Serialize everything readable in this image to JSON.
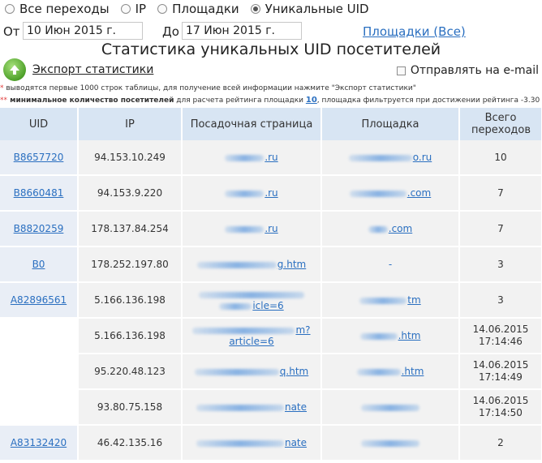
{
  "filters": {
    "options": [
      {
        "label": "Все переходы",
        "checked": false
      },
      {
        "label": "IP",
        "checked": false
      },
      {
        "label": "Площадки",
        "checked": false
      },
      {
        "label": "Уникальные UID",
        "checked": true
      }
    ],
    "from_label": "От",
    "from_value": "10 Июн 2015 г.",
    "to_label": "До",
    "to_value": "17 Июн 2015 г.",
    "sites_link": "Площадки (Все)"
  },
  "title": "Статистика уникальных UID посетителей",
  "export_label": "Экспорт статистики",
  "email_label": "Отправлять на e-mail",
  "notes": {
    "note1_star": "*",
    "note1_text": " выводятся первые 1000 строк таблицы, для получение всей информации нажмите \"Экспорт статистики\"",
    "note2_star": "**",
    "note2_bold": " минимальное количество посетителей",
    "note2_text": " для расчета рейтинга площадки ",
    "note2_link": "10",
    "note2_tail": ", площадка фильтруется при достижении рейтинга -3.30"
  },
  "table": {
    "headers": [
      "UID",
      "IP",
      "Посадочная страница",
      "Площадка",
      "Всего переходов"
    ],
    "rows": [
      {
        "uid": "B8657720",
        "ip": "94.153.10.249",
        "landing": [
          ".ru"
        ],
        "site": "o.ru",
        "total": "10"
      },
      {
        "uid": "B8660481",
        "ip": "94.153.9.220",
        "landing": [
          ".ru"
        ],
        "site": ".com",
        "total": "7"
      },
      {
        "uid": "B8820259",
        "ip": "178.137.84.254",
        "landing": [
          ".ru"
        ],
        "site": ".com",
        "total": "7"
      },
      {
        "uid": "B0",
        "ip": "178.252.197.80",
        "landing": [
          "g.htm"
        ],
        "site": "-",
        "total": "3"
      },
      {
        "uid": "A82896561",
        "ip": "5.166.136.198",
        "landing": [
          "",
          "icle=6"
        ],
        "site": "tm",
        "total": "3"
      },
      {
        "uid": "",
        "ip": "5.166.136.198",
        "landing": [
          "m?",
          "article=6"
        ],
        "site": ".htm",
        "total": "14.06.2015 17:14:46"
      },
      {
        "uid": "",
        "ip": "95.220.48.123",
        "landing": [
          "q.htm"
        ],
        "site": ".htm",
        "total": "14.06.2015 17:14:49"
      },
      {
        "uid": "",
        "ip": "93.80.75.158",
        "landing": [
          "nate"
        ],
        "site": "",
        "total": "14.06.2015 17:14:50"
      },
      {
        "uid": "A83132420",
        "ip": "46.42.135.16",
        "landing": [
          "nate"
        ],
        "site": "",
        "total": "2"
      }
    ]
  }
}
